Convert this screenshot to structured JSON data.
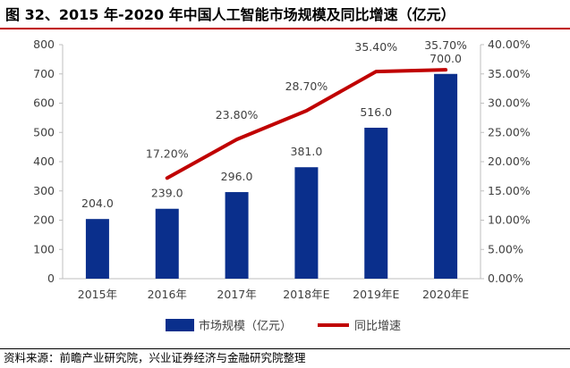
{
  "title": "图 32、2015 年-2020 年中国人工智能市场规模及同比增速（亿元）",
  "source": "资料来源：前瞻产业研究院，兴业证券经济与金融研究院整理",
  "colors": {
    "bar": "#0a2f8c",
    "line": "#c00000",
    "title_rule": "#c00000"
  },
  "chart_data": {
    "type": "bar",
    "categories": [
      "2015年",
      "2016年",
      "2017年",
      "2018年E",
      "2019年E",
      "2020年E"
    ],
    "series": [
      {
        "name": "市场规模（亿元）",
        "type": "bar",
        "axis": "left",
        "values": [
          204.0,
          239.0,
          296.0,
          381.0,
          516.0,
          700.0
        ],
        "labels": [
          "204.0",
          "239.0",
          "296.0",
          "381.0",
          "516.0",
          "700.0"
        ]
      },
      {
        "name": "同比增速",
        "type": "line",
        "axis": "right",
        "values": [
          null,
          17.2,
          23.8,
          28.7,
          35.4,
          35.7
        ],
        "labels": [
          null,
          "17.20%",
          "23.80%",
          "28.70%",
          "35.40%",
          "35.70%"
        ]
      }
    ],
    "y_left": {
      "min": 0,
      "max": 800,
      "ticks": [
        "0",
        "100",
        "200",
        "300",
        "400",
        "500",
        "600",
        "700",
        "800"
      ]
    },
    "y_right": {
      "min": 0,
      "max": 40,
      "ticks": [
        "0.00%",
        "5.00%",
        "10.00%",
        "15.00%",
        "20.00%",
        "25.00%",
        "30.00%",
        "35.00%",
        "40.00%"
      ]
    },
    "legend": {
      "position": "bottom",
      "items": [
        "市场规模（亿元）",
        "同比增速"
      ]
    }
  }
}
